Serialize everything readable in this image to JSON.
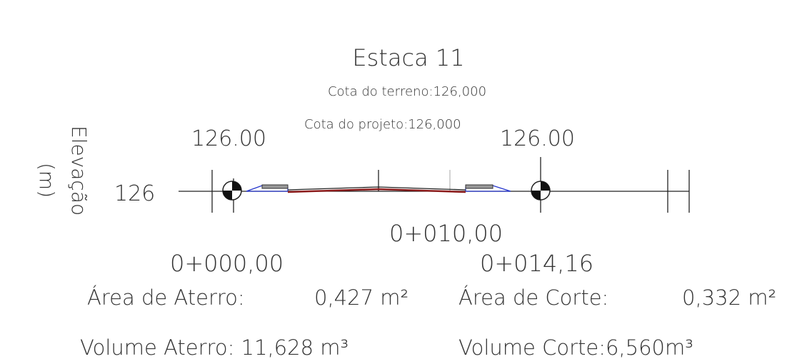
{
  "title": "Estaca 11",
  "cota_terreno": "Cota do terreno:126,000",
  "cota_projeto": "Cota do projeto:126,000",
  "elev_left": "126.00",
  "elev_right": "126.00",
  "axis_label": {
    "line1": "Elevação",
    "line2": "(m)"
  },
  "axis_value": "126",
  "station_center": "0+010,00",
  "station_left": "0+000,00",
  "station_right": "0+014,16",
  "area_aterro": {
    "label": "Área de Aterro:",
    "value": "0,427 m²"
  },
  "area_corte": {
    "label": "Área de Corte:",
    "value": "0,332 m²"
  },
  "volume_aterro": "Volume Aterro: 11,628 m³",
  "volume_corte": "Volume Corte:6,560m³"
}
